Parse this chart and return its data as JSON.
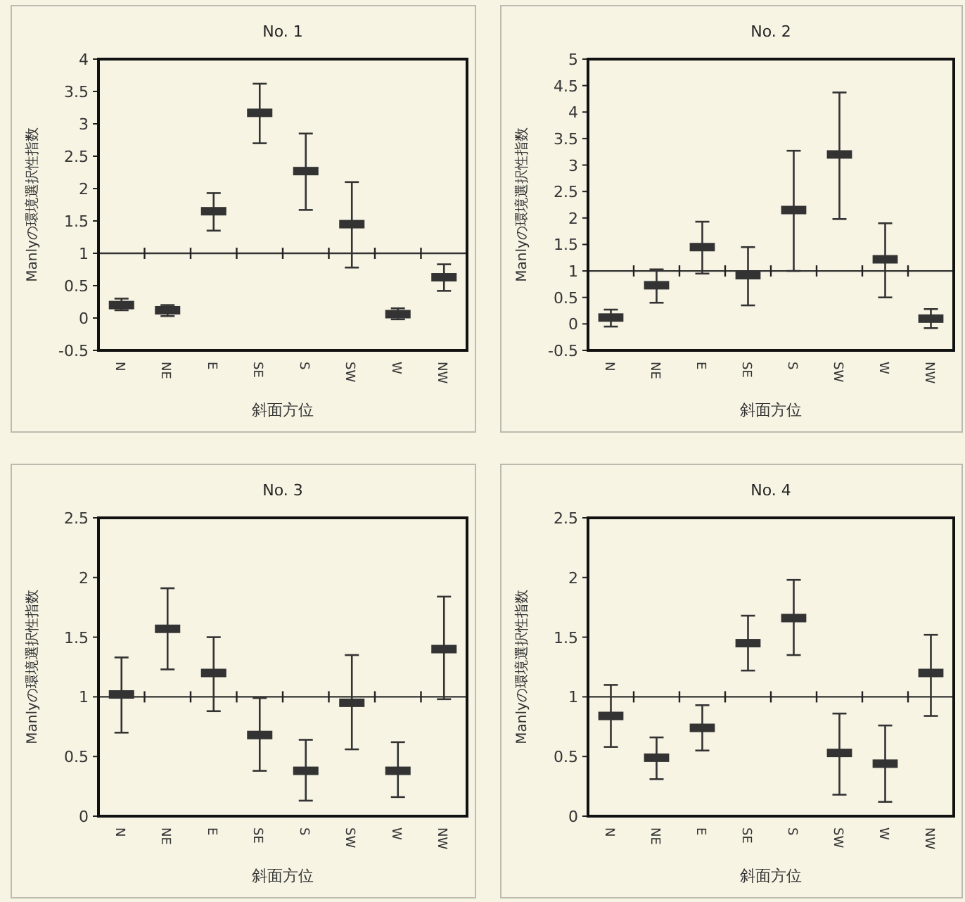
{
  "chart_data": [
    {
      "type": "scatter",
      "title": "No. 1",
      "xlabel": "斜面方位",
      "ylabel": "Manlyの環境選択性指数",
      "color": "#333333",
      "categories": [
        "N",
        "NE",
        "E",
        "SE",
        "S",
        "SW",
        "W",
        "NW"
      ],
      "values": [
        0.2,
        0.12,
        1.65,
        3.17,
        2.27,
        1.45,
        0.06,
        0.63
      ],
      "errors": [
        [
          0.12,
          0.3
        ],
        [
          0.03,
          0.2
        ],
        [
          1.35,
          1.93
        ],
        [
          2.7,
          3.62
        ],
        [
          1.67,
          2.85
        ],
        [
          0.78,
          2.1
        ],
        [
          -0.02,
          0.15
        ],
        [
          0.42,
          0.83
        ]
      ],
      "ylim": [
        -0.5,
        4
      ],
      "yticks": [
        -0.5,
        0,
        0.5,
        1,
        1.5,
        2,
        2.5,
        3,
        3.5,
        4
      ],
      "ref_lines": [
        {
          "axis": "y",
          "value": 1
        }
      ]
    },
    {
      "type": "scatter",
      "title": "No. 2",
      "xlabel": "斜面方位",
      "ylabel": "Manlyの環境選択性指数",
      "color": "#333333",
      "categories": [
        "N",
        "NE",
        "E",
        "SE",
        "S",
        "SW",
        "W",
        "NW"
      ],
      "values": [
        0.12,
        0.73,
        1.45,
        0.92,
        2.15,
        3.2,
        1.22,
        0.1
      ],
      "errors": [
        [
          -0.05,
          0.27
        ],
        [
          0.4,
          1.03
        ],
        [
          0.95,
          1.93
        ],
        [
          0.35,
          1.45
        ],
        [
          1.0,
          3.27
        ],
        [
          1.98,
          4.37
        ],
        [
          0.5,
          1.9
        ],
        [
          -0.08,
          0.28
        ]
      ],
      "ylim": [
        -0.5,
        5
      ],
      "yticks": [
        -0.5,
        0,
        0.5,
        1,
        1.5,
        2,
        2.5,
        3,
        3.5,
        4,
        4.5,
        5
      ],
      "ref_lines": [
        {
          "axis": "y",
          "value": 1
        }
      ]
    },
    {
      "type": "scatter",
      "title": "No. 3",
      "xlabel": "斜面方位",
      "ylabel": "Manlyの環境選択性指数",
      "color": "#333333",
      "categories": [
        "N",
        "NE",
        "E",
        "SE",
        "S",
        "SW",
        "W",
        "NW"
      ],
      "values": [
        1.02,
        1.57,
        1.2,
        0.68,
        0.38,
        0.95,
        0.38,
        1.4
      ],
      "errors": [
        [
          0.7,
          1.33
        ],
        [
          1.23,
          1.91
        ],
        [
          0.88,
          1.5
        ],
        [
          0.38,
          0.99
        ],
        [
          0.13,
          0.64
        ],
        [
          0.56,
          1.35
        ],
        [
          0.16,
          0.62
        ],
        [
          0.98,
          1.84
        ]
      ],
      "ylim": [
        0,
        2.5
      ],
      "yticks": [
        0,
        0.5,
        1,
        1.5,
        2,
        2.5
      ],
      "ref_lines": [
        {
          "axis": "y",
          "value": 1
        }
      ]
    },
    {
      "type": "scatter",
      "title": "No. 4",
      "xlabel": "斜面方位",
      "ylabel": "Manlyの環境選択性指数",
      "color": "#333333",
      "categories": [
        "N",
        "NE",
        "E",
        "SE",
        "S",
        "SW",
        "W",
        "NW"
      ],
      "values": [
        0.84,
        0.49,
        0.74,
        1.45,
        1.66,
        0.53,
        0.44,
        1.2
      ],
      "errors": [
        [
          0.58,
          1.1
        ],
        [
          0.31,
          0.66
        ],
        [
          0.55,
          0.93
        ],
        [
          1.22,
          1.68
        ],
        [
          1.35,
          1.98
        ],
        [
          0.18,
          0.86
        ],
        [
          0.12,
          0.76
        ],
        [
          0.84,
          1.52
        ]
      ],
      "ylim": [
        0,
        2.5
      ],
      "yticks": [
        0,
        0.5,
        1,
        1.5,
        2,
        2.5
      ],
      "ref_lines": [
        {
          "axis": "y",
          "value": 1
        }
      ]
    }
  ]
}
